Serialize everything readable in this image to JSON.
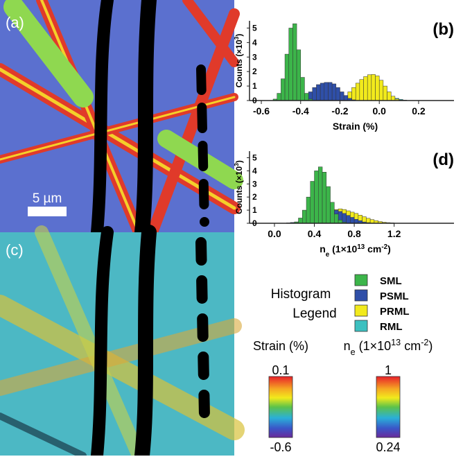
{
  "chart_data": [
    {
      "type": "histogram",
      "panel_label": "(b)",
      "ylabel": [
        "Counts (×10",
        "3",
        ")"
      ],
      "xlabel": [
        "Strain (%)"
      ],
      "bins": [
        -0.56,
        -0.54,
        -0.52,
        -0.5,
        -0.48,
        -0.46,
        -0.44,
        -0.42,
        -0.4,
        -0.38,
        -0.36,
        -0.34,
        -0.32,
        -0.3,
        -0.28,
        -0.26,
        -0.24,
        -0.22,
        -0.2,
        -0.18,
        -0.16,
        -0.14,
        -0.12,
        -0.1,
        -0.08,
        -0.06,
        -0.04,
        -0.02,
        0,
        0.02,
        0.04,
        0.06,
        0.08,
        0.1,
        0.12,
        0.14,
        0.16,
        0.18,
        0.2
      ],
      "series": [
        {
          "name": "SML",
          "color": "#3cb54a",
          "values": [
            0,
            0.1,
            0.5,
            1.5,
            3.2,
            5.0,
            5.3,
            3.5,
            1.6,
            0.5,
            0.1,
            0,
            0,
            0,
            0,
            0,
            0,
            0,
            0,
            0,
            0,
            0,
            0,
            0,
            0,
            0,
            0,
            0,
            0,
            0,
            0,
            0,
            0,
            0,
            0,
            0,
            0,
            0
          ]
        },
        {
          "name": "PSML",
          "color": "#2f4fa8",
          "values": [
            0,
            0,
            0,
            0,
            0,
            0,
            0,
            0,
            0.2,
            0.4,
            0.6,
            0.9,
            1.1,
            1.2,
            1.25,
            1.25,
            1.15,
            0.9,
            0.6,
            0.35,
            0.15,
            0.05,
            0,
            0,
            0,
            0,
            0,
            0,
            0,
            0,
            0,
            0,
            0,
            0,
            0,
            0,
            0,
            0
          ]
        },
        {
          "name": "PRML",
          "color": "#f2ea1c",
          "values": [
            0,
            0,
            0,
            0,
            0,
            0,
            0,
            0,
            0,
            0,
            0,
            0,
            0,
            0,
            0,
            0,
            0,
            0,
            0.1,
            0.3,
            0.6,
            0.9,
            1.2,
            1.45,
            1.65,
            1.78,
            1.8,
            1.7,
            1.4,
            1.0,
            0.6,
            0.3,
            0.1,
            0.03,
            0,
            0,
            0,
            0
          ]
        },
        {
          "name": "RML",
          "color": "#3cc0c0",
          "values": [
            0,
            0,
            0,
            0,
            0,
            0,
            0,
            0,
            0,
            0,
            0,
            0,
            0,
            0,
            0,
            0,
            0,
            0,
            0,
            0,
            0,
            0,
            0,
            0,
            0,
            0,
            0,
            0,
            0.1,
            0.2,
            0.25,
            0.2,
            0.15,
            0.08,
            0.03,
            0,
            0,
            0
          ]
        }
      ],
      "xlim": [
        -0.66,
        0.38
      ],
      "xticks": [
        -0.6,
        -0.4,
        -0.2,
        {
          "value": 0,
          "label": "0.0"
        },
        0.2
      ],
      "ylim": [
        0,
        5.5
      ],
      "yticks": [
        0,
        1,
        2,
        3,
        4,
        5
      ]
    },
    {
      "type": "histogram",
      "panel_label": "(d)",
      "ylabel": [
        "Counts (×10",
        "3",
        ")"
      ],
      "xlabel": [
        "n",
        "e",
        " (1×10",
        "13",
        " cm",
        "-2",
        ")"
      ],
      "bins": [
        0,
        0.04,
        0.08,
        0.12,
        0.16,
        0.2,
        0.24,
        0.28,
        0.32,
        0.36,
        0.4,
        0.44,
        0.48,
        0.52,
        0.56,
        0.6,
        0.64,
        0.68,
        0.72,
        0.76,
        0.8,
        0.84,
        0.88,
        0.92,
        0.96,
        1.0,
        1.04,
        1.08,
        1.12,
        1.16,
        1.2,
        1.24,
        1.28,
        1.32,
        1.36,
        1.4
      ],
      "series": [
        {
          "name": "SML",
          "color": "#3cb54a",
          "values": [
            0,
            0,
            0,
            0,
            0,
            0.1,
            0.4,
            1.0,
            2.0,
            3.2,
            4.0,
            4.3,
            3.9,
            2.8,
            1.6,
            0.7,
            0.25,
            0.08,
            0,
            0,
            0,
            0,
            0,
            0,
            0,
            0,
            0,
            0,
            0,
            0,
            0,
            0,
            0,
            0,
            0
          ]
        },
        {
          "name": "PSML",
          "color": "#2f4fa8",
          "values": [
            0,
            0,
            0,
            0.03,
            0.06,
            0.1,
            0.15,
            0.25,
            0.35,
            0.5,
            0.6,
            0.75,
            0.85,
            0.95,
            1.0,
            1.0,
            0.9,
            0.75,
            0.6,
            0.45,
            0.3,
            0.2,
            0.1,
            0.05,
            0,
            0,
            0,
            0,
            0,
            0,
            0,
            0,
            0,
            0,
            0
          ]
        },
        {
          "name": "PRML",
          "color": "#f2ea1c",
          "values": [
            0,
            0,
            0,
            0,
            0,
            0,
            0,
            0,
            0.05,
            0.1,
            0.2,
            0.35,
            0.55,
            0.75,
            0.95,
            1.05,
            1.1,
            1.05,
            0.95,
            0.85,
            0.75,
            0.62,
            0.5,
            0.38,
            0.28,
            0.2,
            0.13,
            0.08,
            0.05,
            0.03,
            0,
            0,
            0,
            0,
            0
          ]
        }
      ],
      "xlim": [
        -0.25,
        1.8
      ],
      "xticks": [
        {
          "value": 0,
          "label": "0.0"
        },
        0.4,
        0.8,
        1.2
      ],
      "ylim": [
        0,
        5.5
      ],
      "yticks": [
        0,
        1,
        2,
        3,
        4,
        5
      ]
    }
  ],
  "images": [
    {
      "label": "(a)",
      "scalebar": "5 µm"
    },
    {
      "label": "(c)"
    }
  ],
  "legend_title": [
    "Histogram",
    "Legend"
  ],
  "colorbars": [
    {
      "title": [
        "Strain (%)"
      ],
      "max": 0.1,
      "min": -0.6
    },
    {
      "title": [
        "n",
        "e",
        " (1×10",
        "13",
        " cm",
        "-2",
        ")"
      ],
      "max": 1,
      "min": 0.24
    }
  ]
}
